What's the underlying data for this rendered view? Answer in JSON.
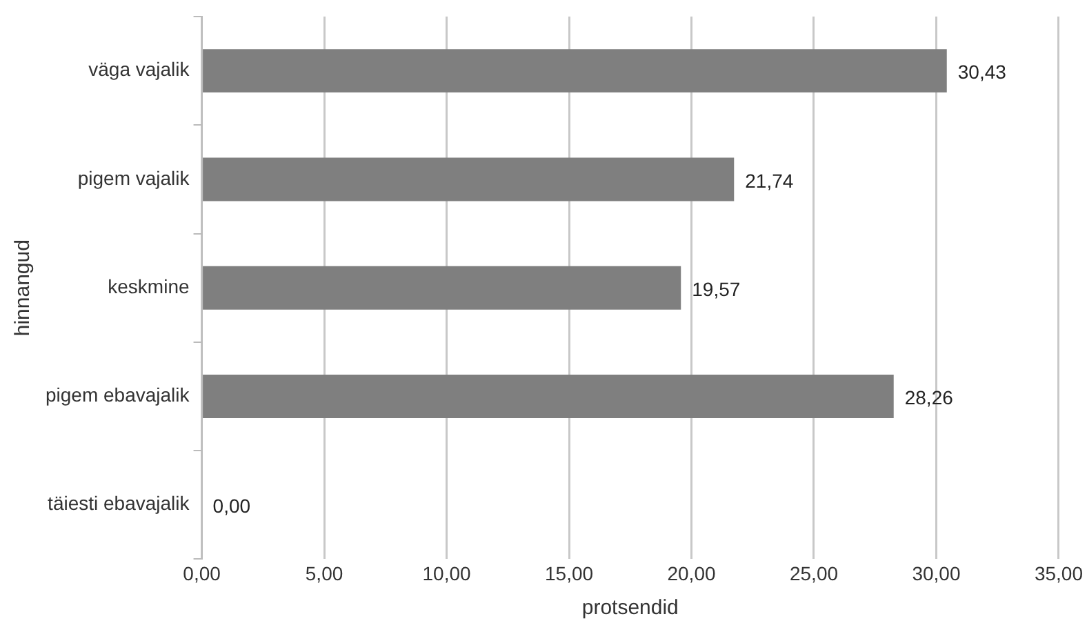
{
  "chart_data": {
    "type": "bar",
    "orientation": "horizontal",
    "xlabel": "protsendid",
    "ylabel": "hinnangud",
    "categories": [
      "väga vajalik",
      "pigem vajalik",
      "keskmine",
      "pigem ebavajalik",
      "täiesti ebavajalik"
    ],
    "values": [
      30.43,
      21.74,
      19.57,
      28.26,
      0
    ],
    "value_labels": [
      "30,43",
      "21,74",
      "19,57",
      "28,26",
      "0,00"
    ],
    "color": "#7f7f7f",
    "xlim": [
      0,
      35
    ],
    "xticks": [
      {
        "value": 0,
        "label": "0,00"
      },
      {
        "value": 5,
        "label": "5,00"
      },
      {
        "value": 10,
        "label": "10,00"
      },
      {
        "value": 15,
        "label": "15,00"
      },
      {
        "value": 20,
        "label": "20,00"
      },
      {
        "value": 25,
        "label": "25,00"
      },
      {
        "value": 30,
        "label": "30,00"
      },
      {
        "value": 35,
        "label": "35,00"
      }
    ],
    "grid": "x",
    "legend": false
  }
}
